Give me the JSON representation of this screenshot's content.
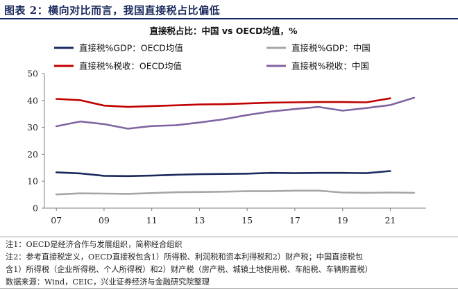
{
  "figure_title": "图表 2：横向对比而言，我国直接税占比偏低",
  "chart_data": {
    "type": "line",
    "title": "直接税占比：中国 vs OECD均值，%",
    "xlabel": "",
    "ylabel": "",
    "ylim": [
      0,
      50
    ],
    "y_ticks": [
      0,
      10,
      20,
      30,
      40,
      50
    ],
    "x_tick_labels": [
      "07",
      "09",
      "11",
      "13",
      "15",
      "17",
      "19",
      "21"
    ],
    "x_tick_years": [
      2007,
      2009,
      2011,
      2013,
      2015,
      2017,
      2019,
      2021
    ],
    "xlim": [
      2006.5,
      2022.5
    ],
    "grid": false,
    "legend_position": "top",
    "series": [
      {
        "name": "直接税%GDP：OECD均值",
        "color": "#1b2a5c",
        "x": [
          2007,
          2008,
          2009,
          2010,
          2011,
          2012,
          2013,
          2014,
          2015,
          2016,
          2017,
          2018,
          2019,
          2020,
          2021
        ],
        "values": [
          13.3,
          12.9,
          12.0,
          11.9,
          12.1,
          12.4,
          12.6,
          12.7,
          12.8,
          13.1,
          13.0,
          13.1,
          13.1,
          13.0,
          13.8
        ]
      },
      {
        "name": "直接税%GDP：中国",
        "color": "#a6a6a6",
        "x": [
          2007,
          2008,
          2009,
          2010,
          2011,
          2012,
          2013,
          2014,
          2015,
          2016,
          2017,
          2018,
          2019,
          2020,
          2021,
          2022
        ],
        "values": [
          5.1,
          5.5,
          5.4,
          5.3,
          5.6,
          5.9,
          6.0,
          6.1,
          6.3,
          6.3,
          6.5,
          6.5,
          5.8,
          5.7,
          5.8,
          5.7
        ]
      },
      {
        "name": "直接税%税收：OECD均值",
        "color": "#c00000",
        "x": [
          2007,
          2008,
          2009,
          2010,
          2011,
          2012,
          2013,
          2014,
          2015,
          2016,
          2017,
          2018,
          2019,
          2020,
          2021
        ],
        "values": [
          40.6,
          40.1,
          38.1,
          37.6,
          37.9,
          38.2,
          38.5,
          38.6,
          38.9,
          39.2,
          39.3,
          39.4,
          39.4,
          39.3,
          40.8
        ]
      },
      {
        "name": "直接税%税收：中国",
        "color": "#8064a2",
        "x": [
          2007,
          2008,
          2009,
          2010,
          2011,
          2012,
          2013,
          2014,
          2015,
          2016,
          2017,
          2018,
          2019,
          2020,
          2021,
          2022
        ],
        "values": [
          30.4,
          32.2,
          31.2,
          29.5,
          30.5,
          30.8,
          31.8,
          33.0,
          34.6,
          35.9,
          36.8,
          37.6,
          36.2,
          37.2,
          38.3,
          41.0
        ]
      }
    ]
  },
  "notes": [
    "注1：OECD是经济合作与发展组织，简称经合组织",
    "注2：参考直接税定义，OECD直接税包含1）所得税、利润税和资本利得税和2）财产税；中国直接税包",
    "含1）所得税（企业所得税、个人所得税）和2）财产税（房产税、城镇土地使用税、车船税、车辆购置税）",
    "数据来源：Wind，CEIC，兴业证券经济与金融研究院整理"
  ]
}
